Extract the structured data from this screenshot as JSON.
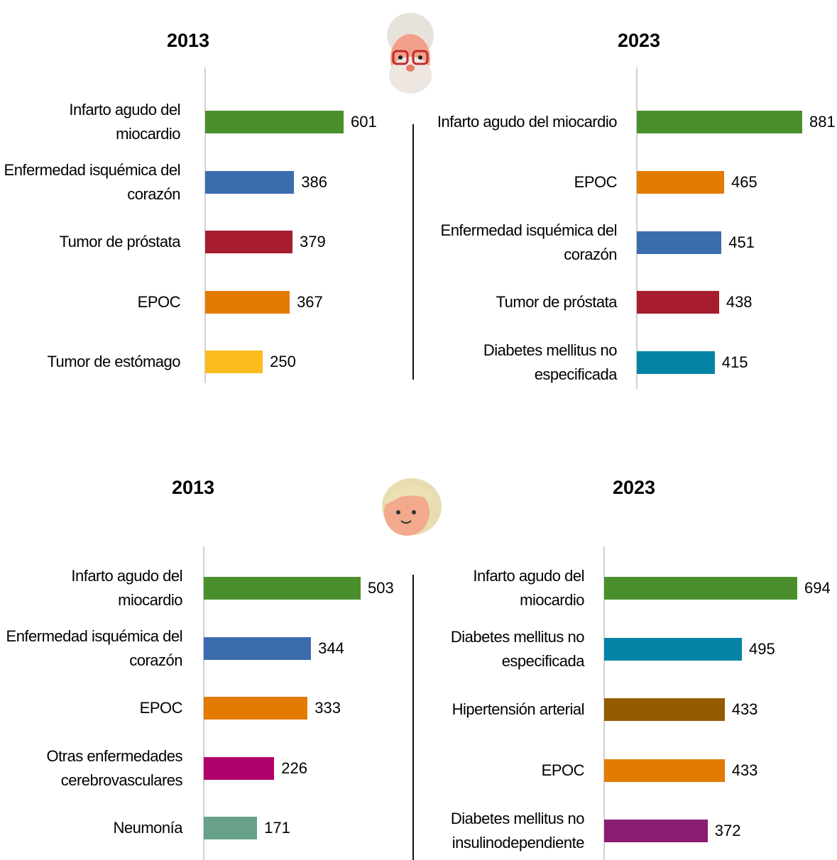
{
  "chart_data": [
    {
      "type": "bar",
      "title": "2013",
      "categories": [
        "Infarto agudo del miocardio",
        "Enfermedad isquémica del corazón",
        "Tumor de próstata",
        "EPOC",
        "Tumor de estómago"
      ],
      "values": [
        601,
        386,
        379,
        367,
        250
      ],
      "colors": [
        "#4a8f2c",
        "#3b6cae",
        "#a71c2f",
        "#e27b00",
        "#fbbd1e"
      ]
    },
    {
      "type": "bar",
      "title": "2023",
      "categories": [
        "Infarto agudo del miocardio",
        "EPOC",
        "Enfermedad isquémica del corazón",
        "Tumor de próstata",
        "Diabetes mellitus no especificada"
      ],
      "values": [
        881,
        465,
        451,
        438,
        415
      ],
      "colors": [
        "#4a8f2c",
        "#e27b00",
        "#3b6cae",
        "#a71c2f",
        "#0384a6"
      ]
    },
    {
      "type": "bar",
      "title": "2013",
      "categories": [
        "Infarto agudo del miocardio",
        "Enfermedad isquémica del corazón",
        "EPOC",
        "Otras enfermedades cerebrovasculares",
        "Neumonía"
      ],
      "values": [
        503,
        344,
        333,
        226,
        171
      ],
      "colors": [
        "#4a8f2c",
        "#3b6cae",
        "#e27b00",
        "#b0006a",
        "#67a288"
      ]
    },
    {
      "type": "bar",
      "title": "2023",
      "categories": [
        "Infarto agudo del miocardio",
        "Diabetes mellitus no especificada",
        "Hipertensión arterial",
        "EPOC",
        "Diabetes mellitus no insulinodependiente"
      ],
      "values": [
        694,
        495,
        433,
        433,
        372
      ],
      "colors": [
        "#4a8f2c",
        "#0384a6",
        "#935b00",
        "#e27b00",
        "#8a1d72"
      ]
    }
  ]
}
